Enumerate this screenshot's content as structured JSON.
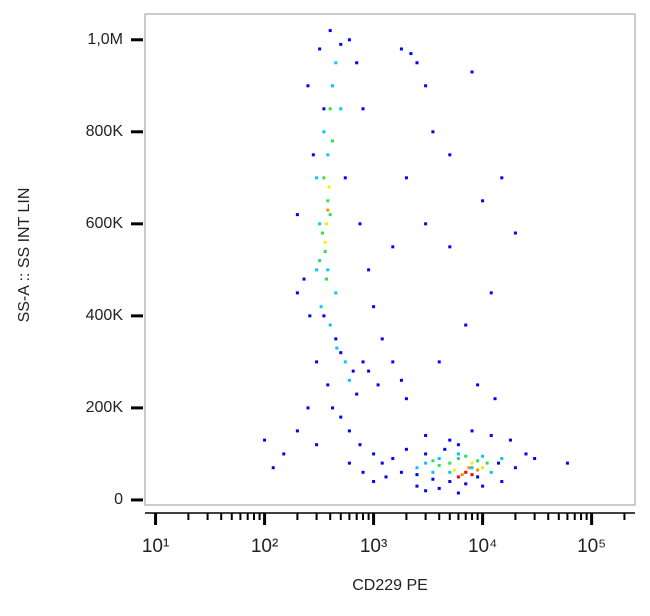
{
  "chart_data": {
    "type": "scatter",
    "x_label": "CD229 PE",
    "y_label": "SS-A :: SS INT LIN",
    "x_scale": "log",
    "xlim": [
      8,
      250000
    ],
    "xticks": [
      {
        "value": 10,
        "label": "10¹"
      },
      {
        "value": 100,
        "label": "10²"
      },
      {
        "value": 1000,
        "label": "10³"
      },
      {
        "value": 10000,
        "label": "10⁴"
      },
      {
        "value": 100000,
        "label": "10⁵"
      }
    ],
    "xminorticks": [
      20,
      30,
      40,
      50,
      60,
      70,
      80,
      90,
      200,
      300,
      400,
      500,
      600,
      700,
      800,
      900,
      2000,
      3000,
      4000,
      5000,
      6000,
      7000,
      8000,
      9000,
      20000,
      30000,
      40000,
      50000,
      60000,
      70000,
      80000,
      90000,
      200000
    ],
    "ylim": [
      -11000,
      1056000
    ],
    "yticks": [
      0,
      {
        "value": 200000,
        "label": "200K"
      },
      {
        "value": 400000,
        "label": "400K"
      },
      {
        "value": 600000,
        "label": "600K"
      },
      {
        "value": 800000,
        "label": "800K"
      },
      {
        "value": 1000000,
        "label": "1,0M"
      }
    ],
    "series": [
      {
        "color": "#0000ff",
        "x": [
          250,
          280,
          320,
          600,
          700,
          800,
          550,
          750,
          900,
          200,
          230,
          260,
          300,
          1000,
          1200,
          1500,
          1800,
          2000,
          250,
          200,
          150,
          300,
          500,
          700,
          900,
          1100,
          600,
          800,
          1000,
          1300,
          1500,
          2500,
          3000,
          4000,
          6000,
          10000,
          15000,
          20000,
          25000,
          18000,
          12000,
          8000,
          5000,
          3000,
          2000,
          100,
          120,
          1800,
          2200,
          2500,
          3000,
          3500,
          5000,
          8000,
          10000,
          15000,
          20000,
          12000,
          7000,
          5000,
          9000,
          13000,
          4000,
          3000,
          400,
          500,
          350,
          200,
          1500,
          2000,
          60000,
          30000,
          350,
          450,
          500,
          650,
          800,
          380,
          420,
          600,
          750,
          1000,
          1200,
          1800,
          2500,
          3500,
          5000,
          7000,
          9000,
          14000,
          3000,
          4500,
          6000
        ],
        "values": [
          900000,
          750000,
          980000,
          1000000,
          950000,
          850000,
          700000,
          600000,
          500000,
          620000,
          480000,
          400000,
          300000,
          420000,
          350000,
          300000,
          260000,
          220000,
          200000,
          150000,
          100000,
          120000,
          180000,
          230000,
          280000,
          250000,
          80000,
          60000,
          40000,
          50000,
          90000,
          30000,
          20000,
          25000,
          15000,
          30000,
          40000,
          70000,
          100000,
          130000,
          140000,
          150000,
          130000,
          140000,
          110000,
          130000,
          70000,
          980000,
          970000,
          950000,
          900000,
          800000,
          750000,
          930000,
          650000,
          700000,
          580000,
          450000,
          380000,
          550000,
          250000,
          220000,
          300000,
          600000,
          1020000,
          990000,
          850000,
          450000,
          550000,
          700000,
          80000,
          90000,
          400000,
          350000,
          320000,
          280000,
          300000,
          250000,
          200000,
          150000,
          120000,
          100000,
          80000,
          60000,
          55000,
          45000,
          40000,
          35000,
          50000,
          80000,
          100000,
          110000,
          120000
        ]
      },
      {
        "color": "#00c8ff",
        "x": [
          300,
          350,
          420,
          450,
          380,
          320,
          300,
          330,
          400,
          460,
          550,
          600,
          500,
          450,
          2500,
          3000,
          4000,
          5000,
          8000,
          10000,
          12000,
          15000,
          6000,
          3500,
          380
        ],
        "values": [
          700000,
          800000,
          900000,
          950000,
          750000,
          600000,
          500000,
          420000,
          380000,
          330000,
          300000,
          260000,
          850000,
          450000,
          70000,
          80000,
          90000,
          60000,
          70000,
          95000,
          60000,
          90000,
          100000,
          60000,
          500000
        ]
      },
      {
        "color": "#30e050",
        "x": [
          350,
          380,
          400,
          340,
          360,
          320,
          420,
          400,
          370,
          4000,
          5000,
          6000,
          7000,
          9000,
          11000,
          3500
        ],
        "values": [
          700000,
          650000,
          620000,
          580000,
          540000,
          520000,
          780000,
          850000,
          480000,
          75000,
          80000,
          90000,
          95000,
          85000,
          80000,
          85000
        ]
      },
      {
        "color": "#f0f000",
        "x": [
          390,
          370,
          360,
          5500,
          8000,
          10000
        ],
        "values": [
          680000,
          600000,
          560000,
          65000,
          80000,
          70000
        ]
      },
      {
        "color": "#ff9000",
        "x": [
          6500,
          7500,
          9000,
          380
        ],
        "values": [
          55000,
          70000,
          65000,
          630000
        ]
      },
      {
        "color": "#ff0000",
        "x": [
          6000,
          7000,
          8000
        ],
        "values": [
          50000,
          60000,
          55000
        ]
      }
    ]
  }
}
